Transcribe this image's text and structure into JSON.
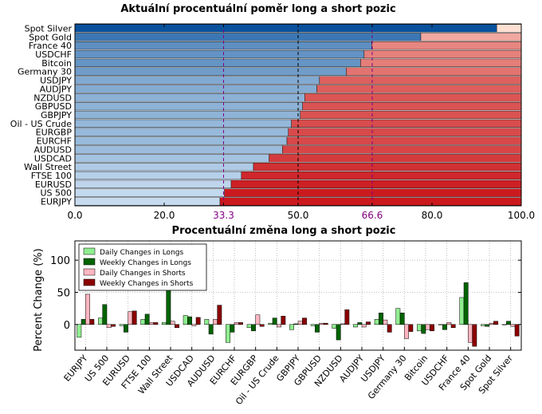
{
  "chart_data": [
    {
      "type": "bar",
      "orientation": "horizontal",
      "stacked": true,
      "title": "Aktuální procentuální poměr long a short pozic",
      "categories": [
        "Spot Silver",
        "Spot Gold",
        "France 40",
        "USDCHF",
        "Bitcoin",
        "Germany 30",
        "USDJPY",
        "AUDJPY",
        "NZDUSD",
        "GBPUSD",
        "GBPJPY",
        "Oil - US Crude",
        "EURGBP",
        "EURCHF",
        "AUDUSD",
        "USDCAD",
        "Wall Street",
        "FTSE 100",
        "EURUSD",
        "US 500",
        "EURJPY"
      ],
      "long_values": [
        94.5,
        77.5,
        66.5,
        64.8,
        64.0,
        60.8,
        54.8,
        54.2,
        51.5,
        51.0,
        50.5,
        48.5,
        47.8,
        47.5,
        46.5,
        43.5,
        40.0,
        37.3,
        35.0,
        33.5,
        32.5
      ],
      "xlim": [
        0,
        100
      ],
      "xticks": [
        {
          "value": 0.0,
          "label": "0.0"
        },
        {
          "value": 20.0,
          "label": "20.0"
        },
        {
          "value": 33.3,
          "label": "33.3"
        },
        {
          "value": 50.0,
          "label": "50.0"
        },
        {
          "value": 66.6,
          "label": "66.6"
        },
        {
          "value": 80.0,
          "label": "80.0"
        },
        {
          "value": 100.0,
          "label": "100.0"
        }
      ],
      "reference_lines": [
        33.3,
        50.0,
        66.6
      ],
      "colors": {
        "long_light": "#c6dbef",
        "long_dark": "#08519c",
        "short_light": "#fee0d2",
        "short_dark": "#cb181d",
        "reference_purple": "#800080",
        "reference_black": "#000000"
      }
    },
    {
      "type": "bar",
      "title": "Procentuální změna long a short pozic",
      "ylabel": "Percent Change (%)",
      "categories": [
        "EURJPY",
        "US 500",
        "EURUSD",
        "FTSE 100",
        "Wall Street",
        "USDCAD",
        "AUDUSD",
        "EURCHF",
        "EURGBP",
        "Oil - US Crude",
        "GBPJPY",
        "GBPUSD",
        "NZDUSD",
        "AUDJPY",
        "USDJPY",
        "Germany 30",
        "Bitcoin",
        "USDCHF",
        "France 40",
        "Spot Gold",
        "Spot Silver"
      ],
      "ylim": [
        -40,
        130
      ],
      "yticks": [
        0,
        50,
        100
      ],
      "grid": true,
      "legend_position": "top-left",
      "series": [
        {
          "name": "Daily Changes in Longs",
          "color": "#90ee90",
          "values": [
            -20,
            10,
            -2,
            8,
            3,
            14,
            8,
            -28,
            -5,
            2,
            -8,
            -2,
            -6,
            -4,
            8,
            25,
            -10,
            0,
            42,
            -2,
            0
          ]
        },
        {
          "name": "Weekly Changes in Longs",
          "color": "#006400",
          "values": [
            8,
            31,
            -12,
            16,
            53,
            12,
            -15,
            -12,
            -10,
            10,
            1,
            -12,
            -24,
            3,
            18,
            18,
            -14,
            -8,
            65,
            -3,
            5
          ]
        },
        {
          "name": "Daily Changes in Shorts",
          "color": "#ffb6c1",
          "values": [
            47,
            -5,
            20,
            3,
            5,
            -2,
            8,
            3,
            15,
            -4,
            5,
            2,
            1,
            -4,
            7,
            -22,
            -8,
            3,
            -28,
            2,
            -3
          ]
        },
        {
          "name": "Weekly Changes in Shorts",
          "color": "#8b0000",
          "values": [
            8,
            -3,
            21,
            3,
            -5,
            11,
            30,
            3,
            -3,
            13,
            10,
            2,
            23,
            4,
            -12,
            -11,
            -10,
            -5,
            -34,
            5,
            -18
          ]
        }
      ]
    }
  ]
}
